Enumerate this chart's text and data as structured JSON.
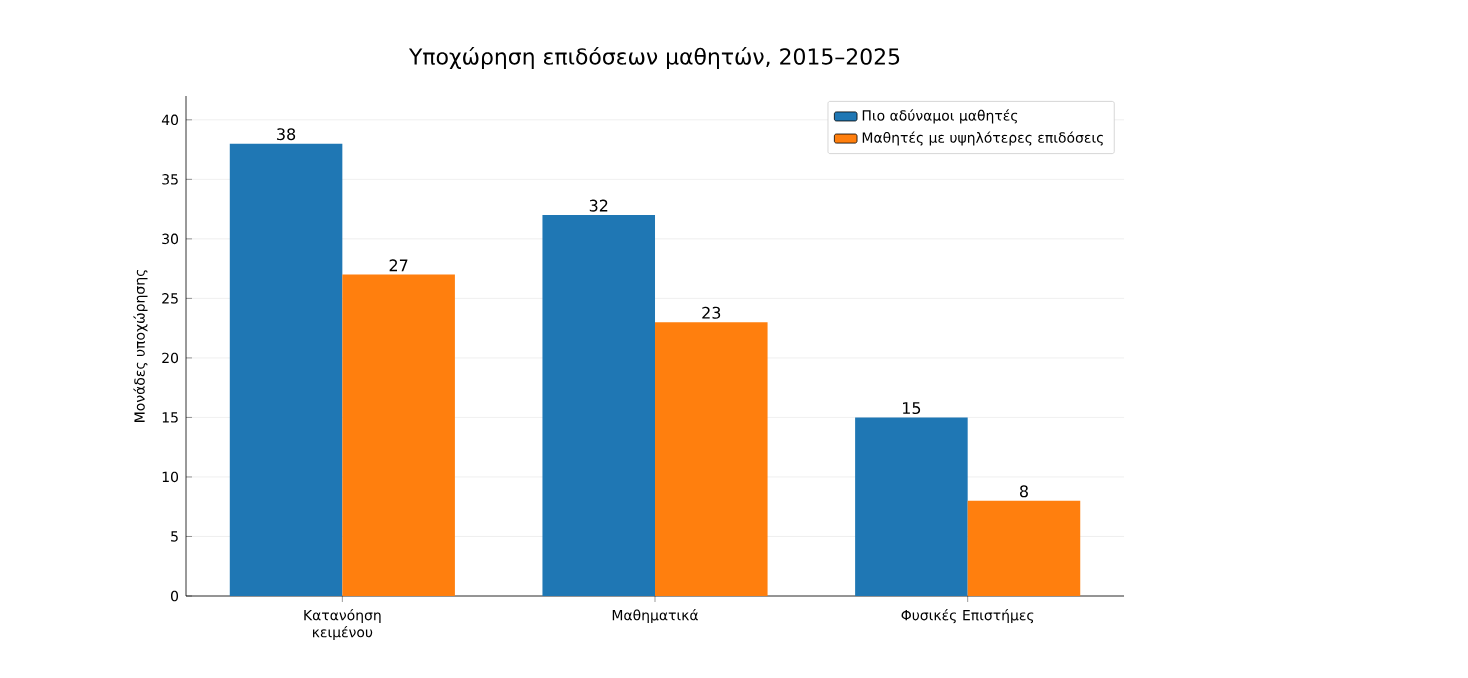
{
  "chart_data": {
    "type": "bar",
    "title": "Υποχώρηση επιδόσεων μαθητών, 2015–2025",
    "ylabel": "Μονάδες υποχώρησης",
    "categories": [
      "Κατανόηση κειμένου",
      "Μαθηματικά",
      "Φυσικές Επιστήμες"
    ],
    "series": [
      {
        "name": "Πιο αδύναμοι μαθητές",
        "color": "#1f77b4",
        "values": [
          38,
          32,
          15
        ]
      },
      {
        "name": "Μαθητές με υψηλότερες επιδόσεις",
        "color": "#ff7f0e",
        "values": [
          27,
          23,
          8
        ]
      }
    ],
    "ylim": [
      0,
      42
    ],
    "yticks": [
      0,
      5,
      10,
      15,
      20,
      25,
      30,
      35,
      40
    ],
    "grid": "y",
    "legend": "top right",
    "data_labels": true
  }
}
